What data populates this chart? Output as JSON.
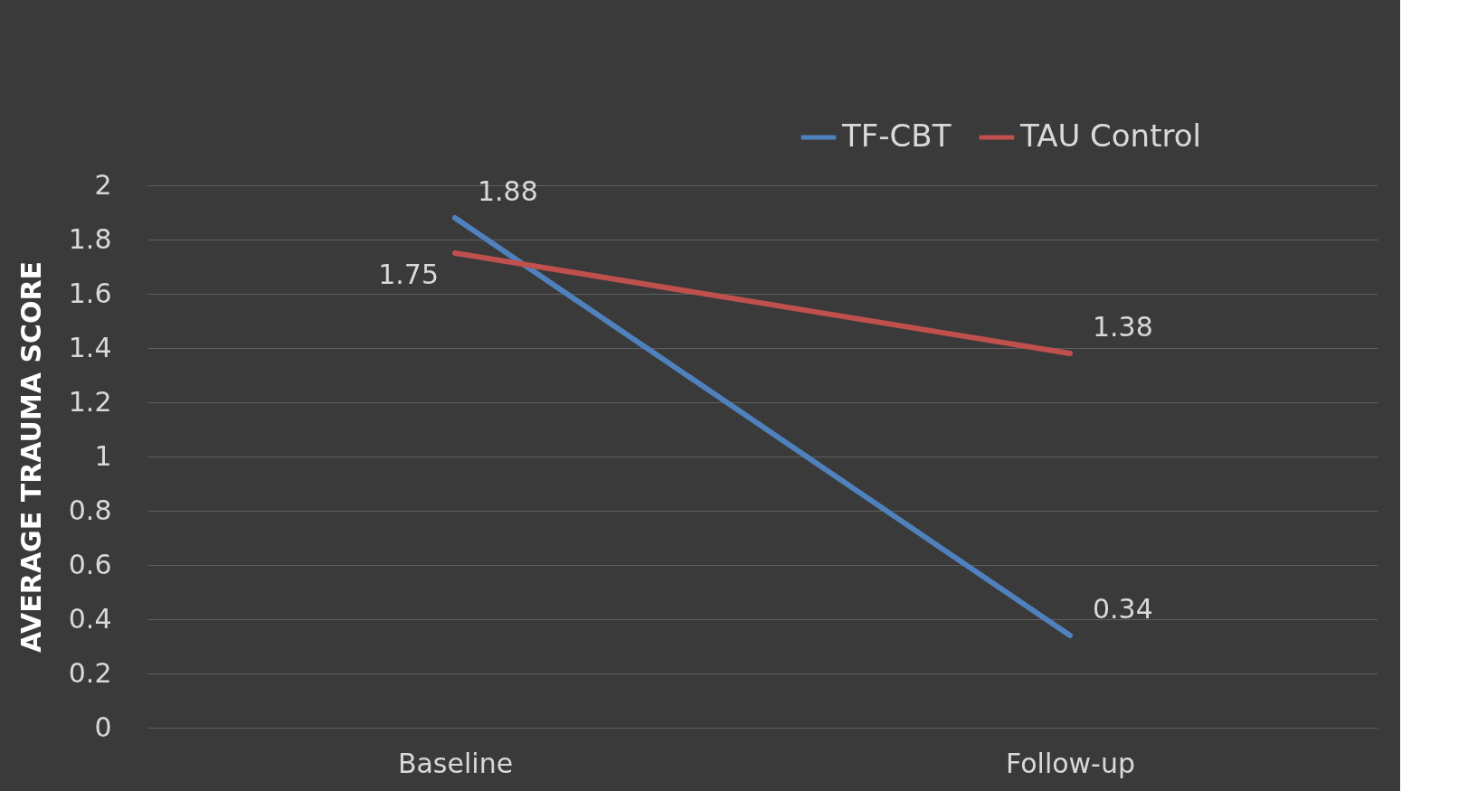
{
  "chart_data": {
    "type": "line",
    "ylabel": "AVERAGE TRAUMA SCORE",
    "categories": [
      "Baseline",
      "Follow-up"
    ],
    "series": [
      {
        "name": "TF-CBT",
        "color": "#4f81bd",
        "values": [
          1.88,
          0.34
        ]
      },
      {
        "name": "TAU Control",
        "color": "#c0504d",
        "values": [
          1.75,
          1.38
        ]
      }
    ],
    "ylim": [
      0,
      2
    ],
    "yticks": [
      0,
      0.2,
      0.4,
      0.6,
      0.8,
      1,
      1.2,
      1.4,
      1.6,
      1.8,
      2
    ],
    "grid": "y",
    "legend": "top right",
    "data_labels": true,
    "marker": "none",
    "line_style": "solid"
  }
}
